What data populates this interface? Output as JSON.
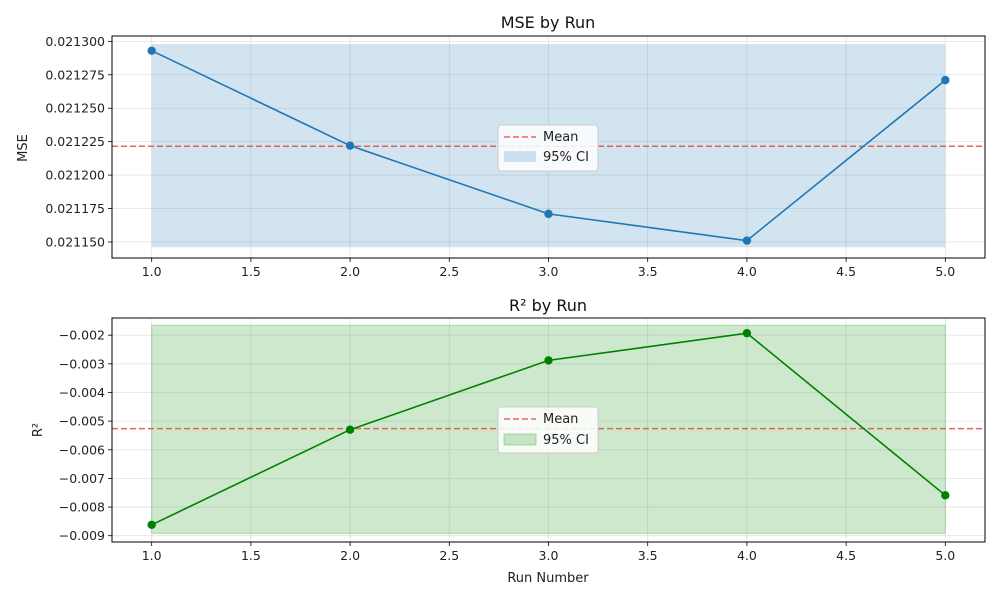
{
  "chart_data": [
    {
      "type": "line",
      "title": "MSE by Run",
      "xlabel": "",
      "ylabel": "MSE",
      "x": [
        1,
        2,
        3,
        4,
        5
      ],
      "series": [
        {
          "values": [
            0.021293,
            0.021222,
            0.021171,
            0.021151,
            0.021271
          ],
          "color": "#1f77b4"
        }
      ],
      "mean": 0.0212216,
      "ci": [
        0.021146,
        0.021298
      ],
      "xlim": [
        0.8,
        5.2
      ],
      "ylim": [
        0.021138,
        0.021304
      ],
      "xticks": [
        "1.0",
        "1.5",
        "2.0",
        "2.5",
        "3.0",
        "3.5",
        "4.0",
        "4.5",
        "5.0"
      ],
      "yticks": [
        "0.021150",
        "0.021175",
        "0.021200",
        "0.021225",
        "0.021250",
        "0.021275",
        "0.021300"
      ],
      "legend": {
        "mean_label": "Mean",
        "ci_label": "95% CI",
        "placement": "center"
      },
      "grid": true,
      "colors": {
        "line": "#1f77b4",
        "band": "#1f77b4",
        "mean": "#e74c3c"
      }
    },
    {
      "type": "line",
      "title": "R² by Run",
      "xlabel": "Run Number",
      "ylabel": "R²",
      "x": [
        1,
        2,
        3,
        4,
        5
      ],
      "series": [
        {
          "values": [
            -0.00862,
            -0.0053,
            -0.00288,
            -0.00193,
            -0.00759
          ],
          "color": "#008000"
        }
      ],
      "mean": -0.005264,
      "ci": [
        -0.00892,
        -0.00165
      ],
      "xlim": [
        0.8,
        5.2
      ],
      "ylim": [
        -0.00922,
        -0.0014
      ],
      "xticks": [
        "1.0",
        "1.5",
        "2.0",
        "2.5",
        "3.0",
        "3.5",
        "4.0",
        "4.5",
        "5.0"
      ],
      "yticks": [
        "−0.009",
        "−0.008",
        "−0.007",
        "−0.006",
        "−0.005",
        "−0.004",
        "−0.003",
        "−0.002"
      ],
      "legend": {
        "mean_label": "Mean",
        "ci_label": "95% CI",
        "placement": "center"
      },
      "grid": true,
      "colors": {
        "line": "#008000",
        "band": "#2ca02c",
        "mean": "#e74c3c"
      }
    }
  ]
}
